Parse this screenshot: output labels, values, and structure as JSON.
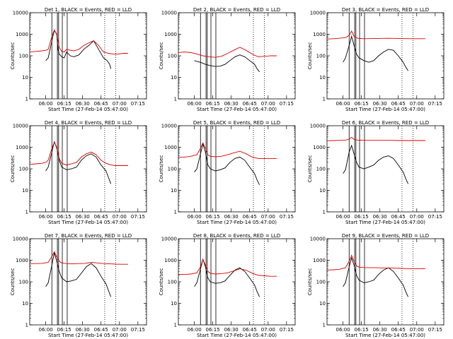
{
  "figure": {
    "panel_layout": "3x3 grid",
    "background": "#ffffff"
  },
  "colors": {
    "events": "#000000",
    "lld": "#dd0000",
    "axes": "#000000"
  },
  "chart_data": [
    {
      "type": "line",
      "title": "Det 1, BLACK = Events, RED = LLD",
      "ylabel": "Counts/sec",
      "xlabel": "Start Time (27-Feb-14 05:47:00)",
      "x_ticks": [
        "06:00",
        "06:15",
        "06:30",
        "06:45",
        "07:00",
        "07:15"
      ],
      "y_ticks": [
        "1",
        "10",
        "100",
        "1000",
        "10000"
      ],
      "ylim": [
        1,
        10000
      ],
      "y_scale": "log",
      "xlim_min": [
        0,
        95
      ],
      "series": [
        {
          "name": "Events",
          "color": "#000000",
          "x": [
            13,
            15,
            18,
            20,
            22,
            23,
            24,
            26,
            28,
            30,
            33,
            36,
            40,
            44,
            48,
            52,
            56,
            60,
            63,
            65,
            66
          ],
          "y": [
            60,
            80,
            500,
            1500,
            1000,
            200,
            120,
            90,
            80,
            150,
            100,
            90,
            110,
            200,
            300,
            500,
            200,
            80,
            60,
            40,
            25
          ]
        },
        {
          "name": "LLD",
          "color": "#dd0000",
          "x": [
            0,
            5,
            10,
            13,
            15,
            18,
            20,
            22,
            24,
            26,
            28,
            30,
            33,
            36,
            40,
            44,
            48,
            52,
            56,
            60,
            64,
            68,
            72,
            76,
            80
          ],
          "y": [
            150,
            160,
            170,
            180,
            200,
            800,
            1600,
            1000,
            250,
            160,
            150,
            200,
            180,
            170,
            200,
            300,
            400,
            500,
            300,
            150,
            130,
            120,
            120,
            130,
            130
          ]
        }
      ],
      "vlines_solid": [
        18,
        22.5,
        23.5,
        26.5,
        30.5
      ],
      "vlines_dotted": [
        61,
        70
      ]
    },
    {
      "type": "line",
      "title": "Det 2, BLACK = Events, RED = LLD",
      "ylabel": "Counts/sec",
      "xlabel": "Start Time (27-Feb-14 05:47:00)",
      "x_ticks": [
        "06:00",
        "06:15",
        "06:30",
        "06:45",
        "07:00",
        "07:15"
      ],
      "y_ticks": [
        "1",
        "10",
        "100",
        "1000",
        "10000"
      ],
      "ylim": [
        1,
        10000
      ],
      "y_scale": "log",
      "xlim_min": [
        0,
        95
      ],
      "series": [
        {
          "name": "Events",
          "color": "#000000",
          "x": [
            13,
            15,
            18,
            22,
            26,
            30,
            34,
            38,
            42,
            46,
            50,
            54,
            58,
            62,
            64,
            66
          ],
          "y": [
            60,
            55,
            50,
            40,
            35,
            32,
            33,
            40,
            60,
            90,
            110,
            90,
            60,
            40,
            25,
            18
          ]
        },
        {
          "name": "LLD",
          "color": "#dd0000",
          "x": [
            0,
            5,
            10,
            15,
            20,
            25,
            30,
            35,
            40,
            45,
            50,
            55,
            60,
            65,
            70,
            75,
            80
          ],
          "y": [
            140,
            150,
            140,
            120,
            100,
            90,
            85,
            95,
            130,
            180,
            250,
            180,
            120,
            90,
            95,
            100,
            100
          ]
        }
      ],
      "vlines_solid": [
        18,
        22.5,
        23.5,
        26.5,
        30.5
      ],
      "vlines_dotted": [
        61,
        70
      ]
    },
    {
      "type": "line",
      "title": "Det 3, BLACK = Events, RED = LLD",
      "ylabel": "Counts/sec",
      "xlabel": "Start Time (27-Feb-14 05:47:00)",
      "x_ticks": [
        "06:00",
        "06:15",
        "06:30",
        "06:45",
        "07:00",
        "07:15"
      ],
      "y_ticks": [
        "1",
        "10",
        "100",
        "1000",
        "10000"
      ],
      "ylim": [
        1,
        10000
      ],
      "y_scale": "log",
      "xlim_min": [
        0,
        95
      ],
      "series": [
        {
          "name": "Events",
          "color": "#000000",
          "x": [
            13,
            15,
            18,
            20,
            22,
            24,
            26,
            30,
            34,
            38,
            42,
            46,
            50,
            54,
            58,
            62,
            64,
            66
          ],
          "y": [
            50,
            80,
            300,
            800,
            300,
            120,
            80,
            60,
            50,
            60,
            100,
            150,
            200,
            180,
            100,
            50,
            30,
            20
          ]
        },
        {
          "name": "LLD",
          "color": "#dd0000",
          "x": [
            0,
            5,
            10,
            15,
            18,
            20,
            22,
            25,
            30,
            40,
            50,
            60,
            70,
            80
          ],
          "y": [
            600,
            620,
            650,
            700,
            900,
            1400,
            800,
            650,
            620,
            640,
            650,
            630,
            620,
            620
          ]
        }
      ],
      "vlines_solid": [
        18,
        22.5,
        23.5,
        26.5,
        30.5
      ],
      "vlines_dotted": [
        61,
        70
      ]
    },
    {
      "type": "line",
      "title": "Det 4, BLACK = Events, RED = LLD",
      "ylabel": "Counts/sec",
      "xlabel": "Start Time (27-Feb-14 05:47:00)",
      "x_ticks": [
        "06:00",
        "06:15",
        "06:30",
        "06:45",
        "07:00",
        "07:15"
      ],
      "y_ticks": [
        "1",
        "10",
        "100",
        "1000",
        "10000"
      ],
      "ylim": [
        1,
        10000
      ],
      "y_scale": "log",
      "xlim_min": [
        0,
        95
      ],
      "series": [
        {
          "name": "Events",
          "color": "#000000",
          "x": [
            13,
            15,
            18,
            20,
            22,
            24,
            26,
            30,
            34,
            38,
            42,
            46,
            50,
            54,
            58,
            62,
            64,
            66
          ],
          "y": [
            80,
            120,
            600,
            1800,
            900,
            250,
            120,
            90,
            100,
            120,
            250,
            400,
            500,
            350,
            150,
            80,
            40,
            20
          ]
        },
        {
          "name": "LLD",
          "color": "#dd0000",
          "x": [
            0,
            5,
            10,
            13,
            15,
            18,
            20,
            22,
            24,
            26,
            30,
            34,
            38,
            42,
            46,
            50,
            54,
            58,
            62,
            66,
            70,
            75,
            80
          ],
          "y": [
            160,
            170,
            180,
            200,
            250,
            900,
            1700,
            1000,
            300,
            180,
            150,
            170,
            200,
            350,
            500,
            600,
            450,
            250,
            180,
            150,
            140,
            140,
            140
          ]
        }
      ],
      "vlines_solid": [
        18,
        22.5,
        23.5,
        26.5,
        30.5
      ],
      "vlines_dotted": [
        61,
        70
      ]
    },
    {
      "type": "line",
      "title": "Det 5, BLACK = Events, RED = LLD",
      "ylabel": "Counts/sec",
      "xlabel": "Start Time (27-Feb-14 05:47:00)",
      "x_ticks": [
        "06:00",
        "06:15",
        "06:30",
        "06:45",
        "07:00",
        "07:15"
      ],
      "y_ticks": [
        "1",
        "10",
        "100",
        "1000",
        "10000"
      ],
      "ylim": [
        1,
        10000
      ],
      "y_scale": "log",
      "xlim_min": [
        0,
        95
      ],
      "series": [
        {
          "name": "Events",
          "color": "#000000",
          "x": [
            13,
            15,
            18,
            20,
            22,
            24,
            26,
            30,
            34,
            38,
            42,
            46,
            50,
            54,
            58,
            62,
            64,
            66
          ],
          "y": [
            70,
            100,
            500,
            1400,
            600,
            150,
            100,
            80,
            90,
            110,
            200,
            300,
            350,
            250,
            120,
            60,
            30,
            18
          ]
        },
        {
          "name": "LLD",
          "color": "#dd0000",
          "x": [
            0,
            5,
            10,
            15,
            18,
            20,
            22,
            24,
            26,
            30,
            35,
            40,
            45,
            50,
            55,
            60,
            65,
            70,
            75,
            80
          ],
          "y": [
            350,
            350,
            380,
            450,
            900,
            1600,
            900,
            450,
            380,
            360,
            380,
            450,
            550,
            650,
            500,
            350,
            300,
            300,
            300,
            300
          ]
        }
      ],
      "vlines_solid": [
        18,
        22.5,
        23.5,
        26.5,
        30.5
      ],
      "vlines_dotted": [
        61,
        70
      ]
    },
    {
      "type": "line",
      "title": "Det 6, BLACK = Events, RED = LLD",
      "ylabel": "Counts/sec",
      "xlabel": "Start Time (27-Feb-14 05:47:00)",
      "x_ticks": [
        "06:00",
        "06:15",
        "06:30",
        "06:45",
        "07:00",
        "07:15"
      ],
      "y_ticks": [
        "1",
        "10",
        "100",
        "1000",
        "10000"
      ],
      "ylim": [
        1,
        10000
      ],
      "y_scale": "log",
      "xlim_min": [
        0,
        95
      ],
      "series": [
        {
          "name": "Events",
          "color": "#000000",
          "x": [
            13,
            15,
            18,
            20,
            22,
            24,
            26,
            30,
            34,
            38,
            42,
            46,
            50,
            54,
            58,
            62,
            64,
            66
          ],
          "y": [
            60,
            90,
            600,
            1200,
            500,
            200,
            120,
            100,
            120,
            150,
            250,
            350,
            400,
            300,
            150,
            70,
            35,
            20
          ]
        },
        {
          "name": "LLD",
          "color": "#dd0000",
          "x": [
            0,
            5,
            10,
            15,
            18,
            20,
            22,
            25,
            30,
            40,
            50,
            60,
            70,
            80
          ],
          "y": [
            2000,
            2050,
            2100,
            2150,
            2400,
            2900,
            2300,
            2150,
            2100,
            2100,
            2100,
            2050,
            2050,
            2050
          ]
        }
      ],
      "vlines_solid": [
        18,
        22.5,
        23.5,
        26.5,
        30.5
      ],
      "vlines_dotted": [
        61,
        70
      ]
    },
    {
      "type": "line",
      "title": "Det 7, BLACK = Events, RED = LLD",
      "ylabel": "Counts/sec",
      "xlabel": "Start Time (27-Feb-14 05:47:00)",
      "x_ticks": [
        "06:00",
        "06:15",
        "06:30",
        "06:45",
        "07:00",
        "07:15"
      ],
      "y_ticks": [
        "1",
        "10",
        "100",
        "1000",
        "10000"
      ],
      "ylim": [
        1,
        10000
      ],
      "y_scale": "log",
      "xlim_min": [
        0,
        95
      ],
      "series": [
        {
          "name": "Events",
          "color": "#000000",
          "x": [
            13,
            15,
            18,
            20,
            22,
            24,
            26,
            30,
            34,
            38,
            42,
            46,
            50,
            54,
            58,
            62,
            64,
            66
          ],
          "y": [
            60,
            90,
            600,
            2200,
            900,
            300,
            150,
            100,
            110,
            130,
            250,
            500,
            700,
            450,
            180,
            80,
            40,
            20
          ]
        },
        {
          "name": "LLD",
          "color": "#dd0000",
          "x": [
            0,
            5,
            10,
            15,
            18,
            20,
            22,
            24,
            26,
            30,
            35,
            40,
            45,
            50,
            55,
            60,
            65,
            70,
            75,
            80
          ],
          "y": [
            700,
            700,
            720,
            800,
            1500,
            2500,
            1400,
            900,
            750,
            700,
            680,
            700,
            720,
            800,
            750,
            700,
            680,
            660,
            650,
            650
          ]
        }
      ],
      "vlines_solid": [
        18,
        22.5,
        23.5,
        26.5,
        30.5
      ],
      "vlines_dotted": [
        61,
        70
      ]
    },
    {
      "type": "line",
      "title": "Det 8, BLACK = Events, RED = LLD",
      "ylabel": "Counts/sec",
      "xlabel": "Start Time (27-Feb-14 05:47:00)",
      "x_ticks": [
        "06:00",
        "06:15",
        "06:30",
        "06:45",
        "07:00",
        "07:15"
      ],
      "y_ticks": [
        "1",
        "10",
        "100",
        "1000",
        "10000"
      ],
      "ylim": [
        1,
        10000
      ],
      "y_scale": "log",
      "xlim_min": [
        0,
        95
      ],
      "series": [
        {
          "name": "Events",
          "color": "#000000",
          "x": [
            13,
            15,
            18,
            20,
            22,
            24,
            26,
            30,
            34,
            38,
            42,
            46,
            50,
            54,
            58,
            62,
            64,
            66
          ],
          "y": [
            60,
            90,
            400,
            1100,
            500,
            150,
            100,
            85,
            90,
            110,
            200,
            350,
            450,
            300,
            150,
            70,
            35,
            20
          ]
        },
        {
          "name": "LLD",
          "color": "#dd0000",
          "x": [
            0,
            5,
            10,
            15,
            18,
            20,
            22,
            24,
            26,
            30,
            35,
            40,
            45,
            50,
            55,
            60,
            65,
            70,
            75,
            80
          ],
          "y": [
            220,
            220,
            230,
            260,
            500,
            1100,
            600,
            300,
            250,
            230,
            240,
            260,
            320,
            400,
            350,
            250,
            200,
            190,
            180,
            180
          ]
        }
      ],
      "vlines_solid": [
        18,
        22.5,
        23.5,
        26.5,
        30.5
      ],
      "vlines_dotted": [
        61,
        70
      ]
    },
    {
      "type": "line",
      "title": "Det 9, BLACK = Events, RED = LLD",
      "ylabel": "Counts/sec",
      "xlabel": "Start Time (27-Feb-14 05:47:00)",
      "x_ticks": [
        "06:00",
        "06:15",
        "06:30",
        "06:45",
        "07:00",
        "07:15"
      ],
      "y_ticks": [
        "1",
        "10",
        "100",
        "1000",
        "10000"
      ],
      "ylim": [
        1,
        10000
      ],
      "y_scale": "log",
      "xlim_min": [
        0,
        95
      ],
      "series": [
        {
          "name": "Events",
          "color": "#000000",
          "x": [
            13,
            15,
            18,
            20,
            22,
            24,
            26,
            30,
            34,
            38,
            42,
            46,
            50,
            54,
            58,
            62,
            64,
            66
          ],
          "y": [
            60,
            90,
            500,
            1300,
            600,
            200,
            120,
            90,
            100,
            120,
            220,
            350,
            450,
            300,
            150,
            70,
            35,
            20
          ]
        },
        {
          "name": "LLD",
          "color": "#dd0000",
          "x": [
            0,
            5,
            10,
            15,
            18,
            20,
            22,
            24,
            26,
            30,
            35,
            40,
            45,
            50,
            55,
            60,
            65,
            70,
            75,
            80
          ],
          "y": [
            350,
            360,
            380,
            450,
            900,
            1700,
            900,
            550,
            480,
            460,
            450,
            450,
            440,
            440,
            430,
            420,
            410,
            400,
            400,
            400
          ]
        }
      ],
      "vlines_solid": [
        18,
        22.5,
        23.5,
        26.5,
        30.5
      ],
      "vlines_dotted": [
        61,
        70
      ]
    }
  ]
}
